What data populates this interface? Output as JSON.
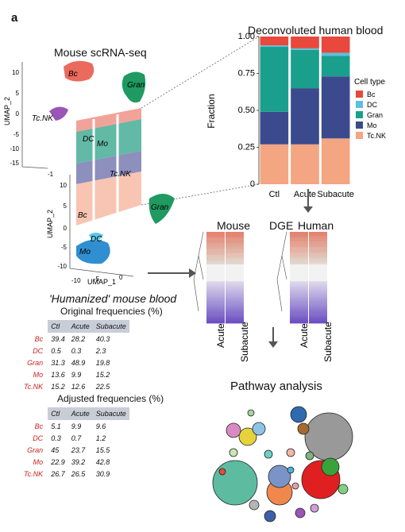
{
  "panel_label": "a",
  "mouse": {
    "title": "Mouse scRNA-seq",
    "clusters": [
      "Bc",
      "Gran",
      "Tc.NK",
      "DC",
      "Mo",
      "Tc.NK",
      "Bc",
      "Gran",
      "DC",
      "Mo"
    ],
    "axis_top": {
      "ylabel": "UMAP_2",
      "ticks": [
        "10",
        "5",
        "0",
        "-5",
        "-10",
        "-15"
      ]
    },
    "axis_bottom": {
      "ylabel": "UMAP_2",
      "xlabel": "UMAP_1",
      "yticks": [
        "10",
        "5",
        "0",
        "-5",
        "-10"
      ],
      "xticks": [
        "-10",
        "-5",
        "0"
      ],
      "corner_tick": "-1"
    }
  },
  "labels": {
    "human_title": "Deconvoluted human blood",
    "humanized_title": "'Humanized' mouse blood",
    "dge": "DGE",
    "pathway": "Pathway analysis"
  },
  "chart_data": [
    {
      "type": "bar",
      "title": "Deconvoluted human blood",
      "stacked": true,
      "categories": [
        "Ctl",
        "Acute",
        "Subacute"
      ],
      "ylabel": "Fraction",
      "ylim": [
        0,
        1
      ],
      "yticks": [
        "0",
        "0.25",
        "0.50",
        "0.75",
        "1.00"
      ],
      "legend_title": "Cell type",
      "legend_position": "right",
      "series": [
        {
          "name": "Tc.NK",
          "color": "#f4a582",
          "values": [
            0.27,
            0.27,
            0.31
          ]
        },
        {
          "name": "Mo",
          "color": "#3b4a8c",
          "values": [
            0.22,
            0.38,
            0.42
          ]
        },
        {
          "name": "Gran",
          "color": "#1a9f8c",
          "values": [
            0.44,
            0.26,
            0.14
          ]
        },
        {
          "name": "DC",
          "color": "#5bc0de",
          "values": [
            0.01,
            0.01,
            0.02
          ]
        },
        {
          "name": "Bc",
          "color": "#e8493c",
          "values": [
            0.06,
            0.08,
            0.11
          ]
        }
      ]
    },
    {
      "type": "table",
      "title": "Original frequencies (%)",
      "columns": [
        "Ctl",
        "Acute",
        "Subacute"
      ],
      "rows": [
        {
          "name": "Bc",
          "values": [
            "39.4",
            "28.2",
            "40.3"
          ]
        },
        {
          "name": "DC",
          "values": [
            "0.5",
            "0.3",
            "2.3"
          ]
        },
        {
          "name": "Gran",
          "values": [
            "31.3",
            "48.9",
            "19.8"
          ]
        },
        {
          "name": "Mo",
          "values": [
            "13.6",
            "9.9",
            "15.2"
          ]
        },
        {
          "name": "Tc.NK",
          "values": [
            "15.2",
            "12.6",
            "22.5"
          ]
        }
      ]
    },
    {
      "type": "table",
      "title": "Adjusted frequencies (%)",
      "columns": [
        "Ctl",
        "Acute",
        "Subacute"
      ],
      "rows": [
        {
          "name": "Bc",
          "values": [
            "5.1",
            "9.9",
            "9.6"
          ]
        },
        {
          "name": "DC",
          "values": [
            "0.3",
            "0.7",
            "1.2"
          ]
        },
        {
          "name": "Gran",
          "values": [
            "45",
            "23.7",
            "15.5"
          ]
        },
        {
          "name": "Mo",
          "values": [
            "22.9",
            "39.2",
            "42.8"
          ]
        },
        {
          "name": "Tc.NK",
          "values": [
            "26.7",
            "26.5",
            "30.9"
          ]
        }
      ]
    },
    {
      "type": "heatmap",
      "title": "Mouse",
      "columns": [
        "Acute",
        "Subacute"
      ],
      "color_high": "#e8755a",
      "color_low": "#5b4fa0"
    },
    {
      "type": "heatmap",
      "title": "Human",
      "columns": [
        "Acute",
        "Subacute"
      ],
      "color_high": "#e8755a",
      "color_low": "#5b4fa0"
    }
  ]
}
